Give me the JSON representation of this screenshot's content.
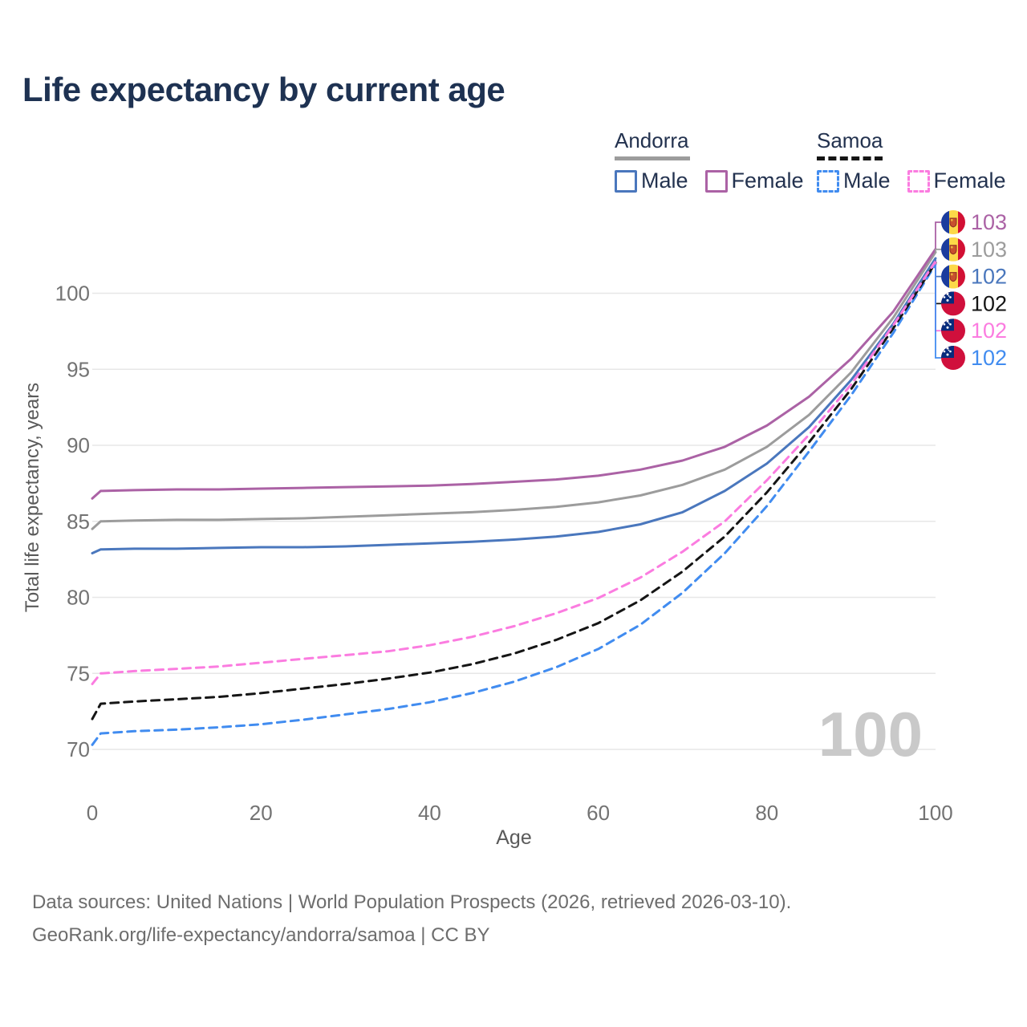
{
  "title": "Life expectancy by current age",
  "legend": {
    "groups": [
      {
        "label": "Andorra",
        "line_style": "solid",
        "line_color": "#9c9c9c",
        "items": [
          {
            "label": "Male",
            "color": "#4a77bd"
          },
          {
            "label": "Female",
            "color": "#ab62a5"
          }
        ]
      },
      {
        "label": "Samoa",
        "line_style": "dashed",
        "line_color": "#151515",
        "items": [
          {
            "label": "Male",
            "color": "#418cf0"
          },
          {
            "label": "Female",
            "color": "#fb7ce0"
          }
        ]
      }
    ]
  },
  "watermark_age": "100",
  "footer": {
    "line1": "Data sources: United Nations | World Population Prospects (2026, retrieved 2026-03-10).",
    "line2": "GeoRank.org/life-expectancy/andorra/samoa | CC BY"
  },
  "chart_data": {
    "type": "line",
    "title": "Life expectancy by current age",
    "xlabel": "Age",
    "ylabel": "Total life expectancy, years",
    "xlim": [
      0,
      100
    ],
    "ylim": [
      69,
      104
    ],
    "x_ticks": [
      0,
      20,
      40,
      60,
      80,
      100
    ],
    "y_ticks": [
      70,
      75,
      80,
      85,
      90,
      95,
      100
    ],
    "grid": "horizontal",
    "legend_position": "top-right",
    "x": [
      0,
      1,
      5,
      10,
      15,
      20,
      25,
      30,
      35,
      40,
      45,
      50,
      55,
      60,
      65,
      70,
      75,
      80,
      85,
      90,
      95,
      100
    ],
    "series": [
      {
        "name": "Andorra Female",
        "country": "Andorra",
        "sex": "Female",
        "color": "#ab62a5",
        "dash": false,
        "end_label": "103",
        "label_row": 0,
        "values": [
          86.5,
          87.0,
          87.05,
          87.1,
          87.1,
          87.15,
          87.2,
          87.25,
          87.3,
          87.35,
          87.45,
          87.6,
          87.75,
          88.0,
          88.4,
          89.0,
          89.9,
          91.3,
          93.2,
          95.7,
          98.8,
          102.9
        ]
      },
      {
        "name": "Andorra Both sexes",
        "country": "Andorra",
        "sex": "Both",
        "color": "#9c9c9c",
        "dash": false,
        "end_label": "103",
        "label_row": 1,
        "values": [
          84.5,
          85.0,
          85.05,
          85.1,
          85.1,
          85.15,
          85.2,
          85.3,
          85.4,
          85.5,
          85.6,
          85.75,
          85.95,
          86.25,
          86.7,
          87.4,
          88.4,
          89.9,
          92.0,
          94.8,
          98.4,
          102.7
        ]
      },
      {
        "name": "Andorra Male",
        "country": "Andorra",
        "sex": "Male",
        "color": "#4a77bd",
        "dash": false,
        "end_label": "102",
        "label_row": 2,
        "values": [
          82.9,
          83.15,
          83.2,
          83.2,
          83.25,
          83.3,
          83.3,
          83.35,
          83.45,
          83.55,
          83.65,
          83.8,
          84.0,
          84.3,
          84.8,
          85.6,
          87.0,
          88.8,
          91.2,
          94.3,
          98.0,
          102.3
        ]
      },
      {
        "name": "Samoa Both sexes",
        "country": "Samoa",
        "sex": "Both",
        "color": "#151515",
        "dash": true,
        "end_label": "102",
        "label_row": 3,
        "values": [
          72.0,
          73.0,
          73.15,
          73.3,
          73.45,
          73.7,
          74.0,
          74.3,
          74.65,
          75.05,
          75.6,
          76.3,
          77.2,
          78.3,
          79.8,
          81.7,
          84.0,
          86.9,
          90.2,
          93.7,
          97.7,
          102.0
        ]
      },
      {
        "name": "Samoa Female",
        "country": "Samoa",
        "sex": "Female",
        "color": "#fb7ce0",
        "dash": true,
        "end_label": "102",
        "label_row": 4,
        "values": [
          74.3,
          75.0,
          75.15,
          75.3,
          75.45,
          75.7,
          75.95,
          76.2,
          76.45,
          76.85,
          77.4,
          78.1,
          78.95,
          79.95,
          81.3,
          83.0,
          85.0,
          87.7,
          90.7,
          94.0,
          97.9,
          102.1
        ]
      },
      {
        "name": "Samoa Male",
        "country": "Samoa",
        "sex": "Male",
        "color": "#418cf0",
        "dash": true,
        "end_label": "102",
        "label_row": 5,
        "values": [
          70.3,
          71.05,
          71.2,
          71.3,
          71.45,
          71.65,
          71.95,
          72.3,
          72.65,
          73.1,
          73.7,
          74.45,
          75.4,
          76.6,
          78.2,
          80.3,
          82.9,
          86.0,
          89.6,
          93.3,
          97.4,
          101.9
        ]
      }
    ]
  }
}
